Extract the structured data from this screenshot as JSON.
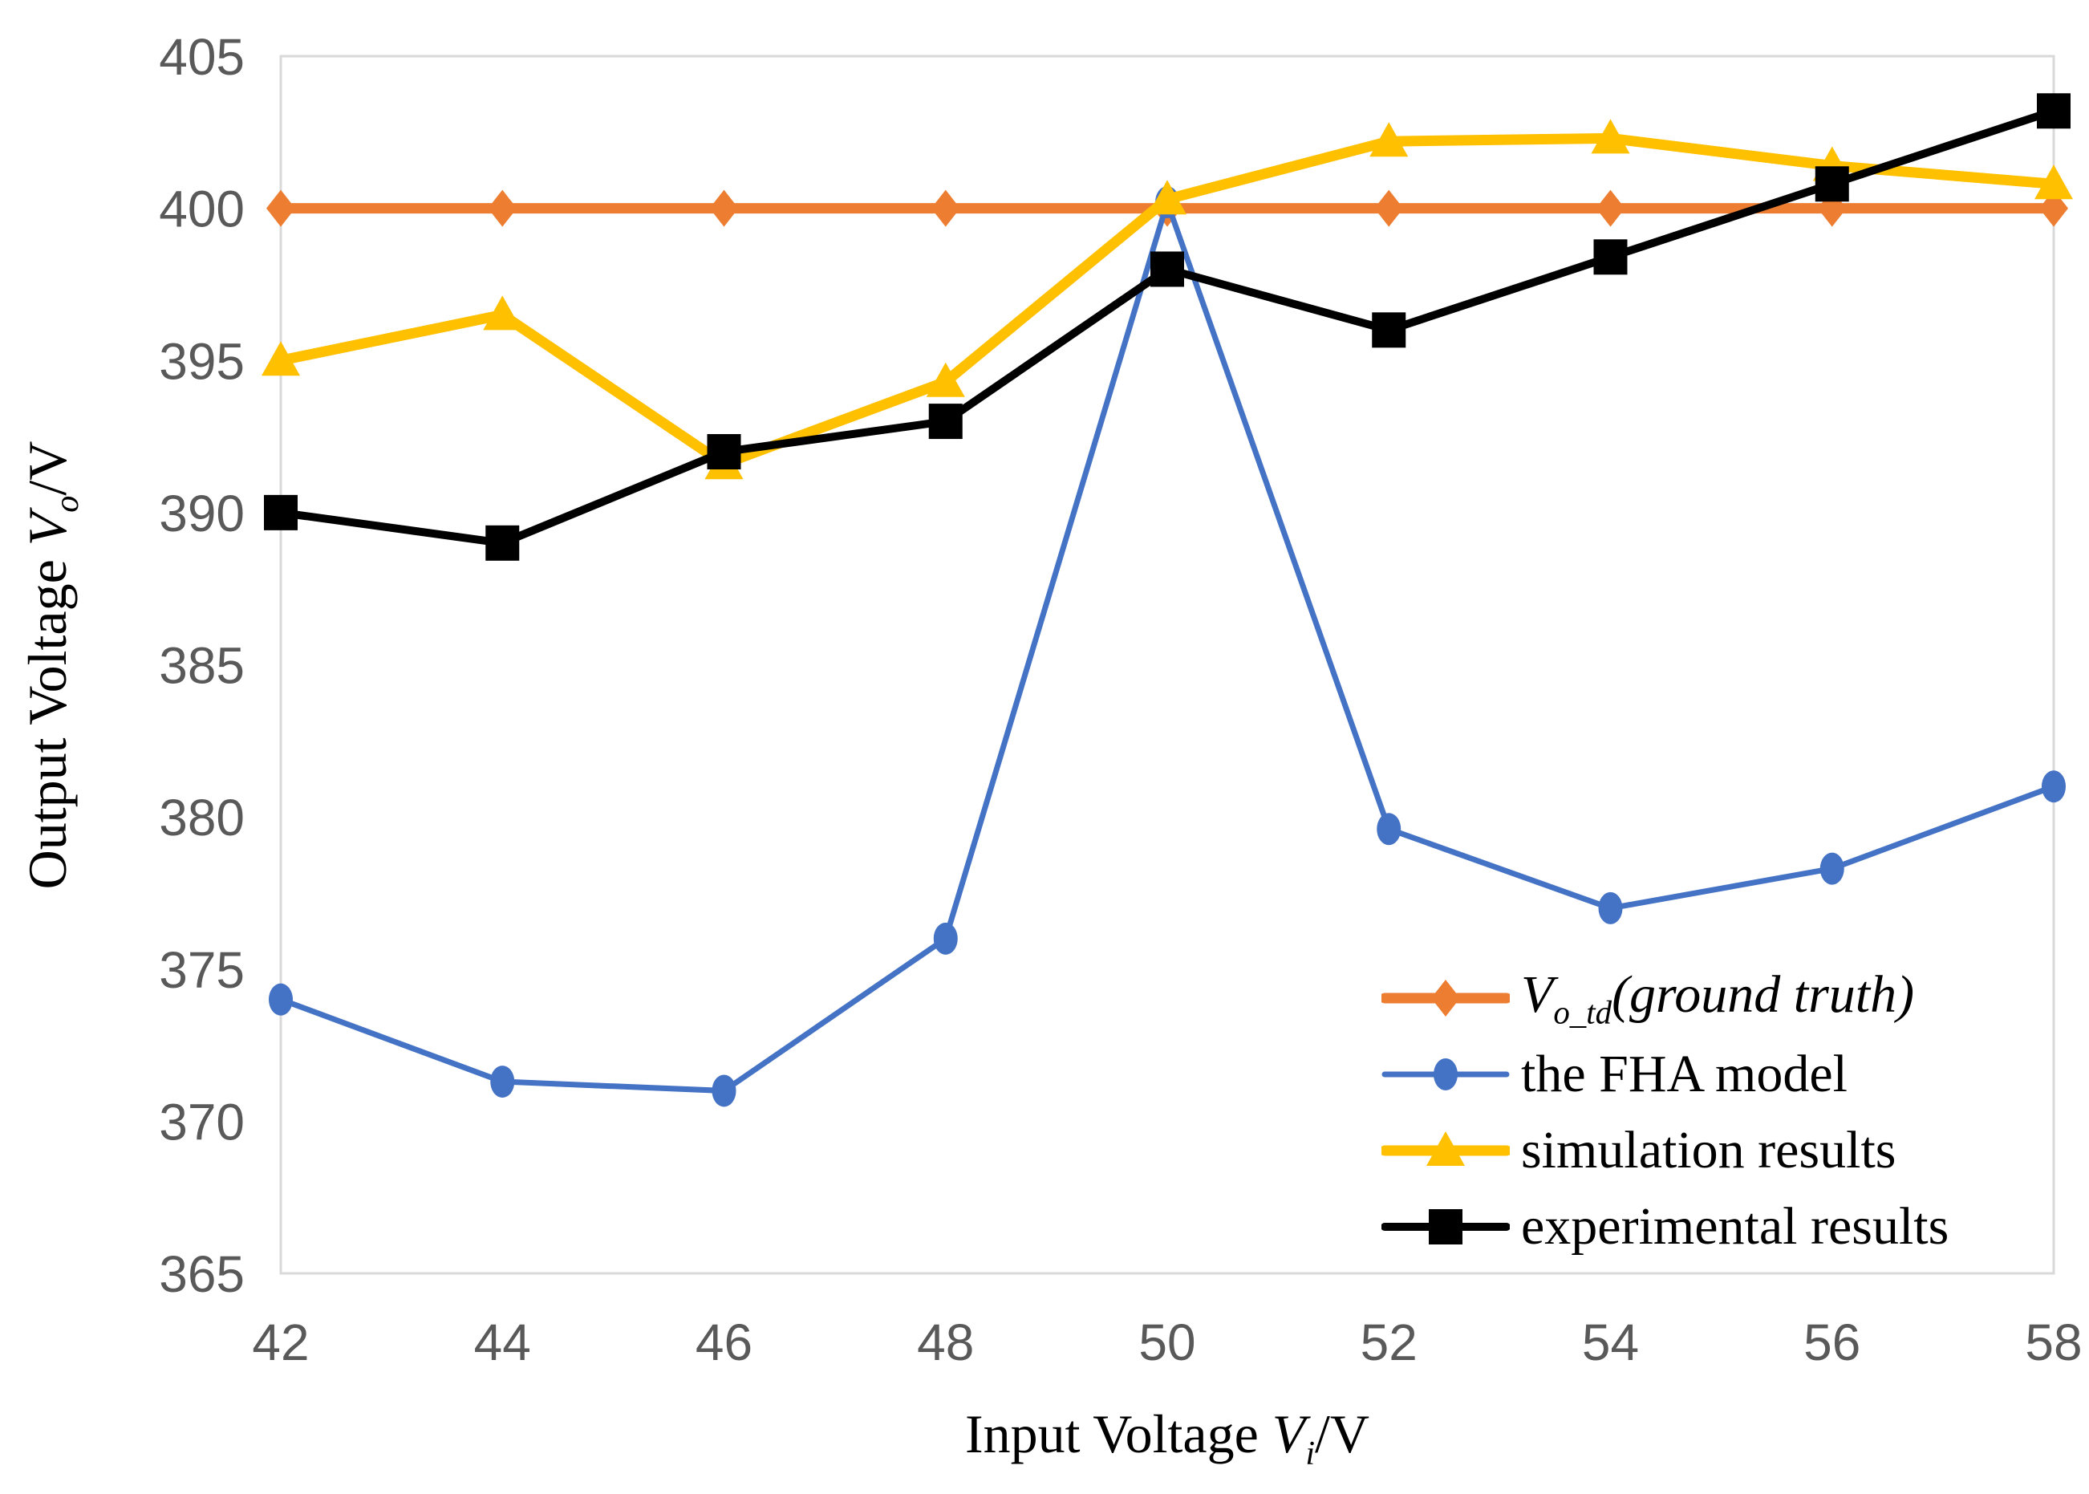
{
  "chart_data": {
    "type": "line",
    "title": "",
    "xlabel": "Input Voltage V_i/V",
    "ylabel": "Output Voltage V_o/V",
    "x_title_parts": {
      "prefix": "Input Voltage ",
      "var": "V",
      "sub": "i",
      "suffix": "/V"
    },
    "y_title_parts": {
      "prefix": "Output Voltage ",
      "var": "V",
      "sub": "o",
      "suffix": "/V"
    },
    "x": [
      42,
      44,
      46,
      48,
      50,
      52,
      54,
      56,
      58
    ],
    "x_ticks": [
      42,
      44,
      46,
      48,
      50,
      52,
      54,
      56,
      58
    ],
    "y_ticks": [
      365,
      370,
      375,
      380,
      385,
      390,
      395,
      400,
      405
    ],
    "xlim": [
      42,
      58
    ],
    "ylim": [
      365,
      405
    ],
    "grid": "off",
    "legend_position": "inside-bottom-right",
    "series": [
      {
        "name": "V_o_td(ground truth)",
        "marker": "diamond",
        "color": "#ED7D31",
        "line_width": 13,
        "values": [
          400,
          400,
          400,
          400,
          400,
          400,
          400,
          400,
          400
        ]
      },
      {
        "name": "the FHA model",
        "marker": "circle",
        "color": "#4472C4",
        "line_width": 7,
        "values": [
          374,
          371.3,
          371,
          376,
          400.2,
          379.6,
          377,
          378.3,
          381
        ]
      },
      {
        "name": "simulation results",
        "marker": "triangle",
        "color": "#FFC000",
        "line_width": 13,
        "values": [
          395,
          396.5,
          391.6,
          394.3,
          400.3,
          402.2,
          402.3,
          401.4,
          400.8
        ]
      },
      {
        "name": "experimental results",
        "marker": "square",
        "color": "#000000",
        "line_width": 10,
        "values": [
          390,
          389,
          392,
          393,
          398,
          396,
          398.4,
          400.8,
          403.2
        ]
      }
    ],
    "style": {
      "border_color": "#D9D9D9",
      "tick_label_color": "#595959",
      "axis_title_color": "#000000"
    }
  },
  "legend": {
    "items": [
      {
        "var": "V",
        "sub": "o_td",
        "rest": "(ground truth)"
      },
      {
        "label": "the FHA model"
      },
      {
        "label": "simulation results"
      },
      {
        "label": "experimental results"
      }
    ]
  },
  "axes": {
    "x_title": {
      "prefix": "Input Voltage ",
      "var": "V",
      "sub": "i",
      "suffix": "/V"
    },
    "y_title": {
      "prefix": "Output Voltage ",
      "var": "V",
      "sub": "o",
      "suffix": "/V"
    }
  }
}
